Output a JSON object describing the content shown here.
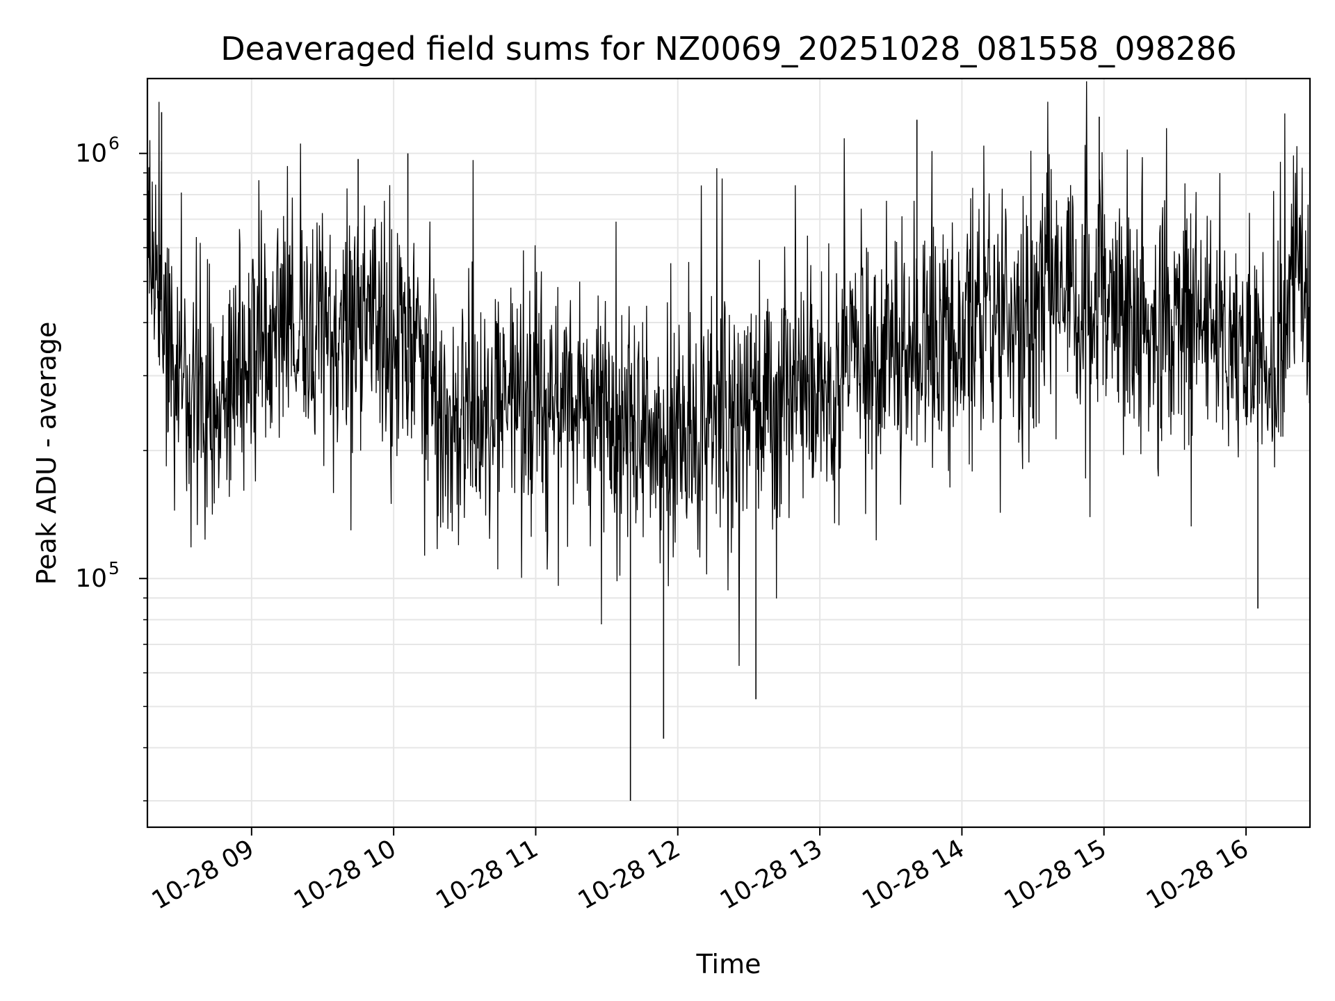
{
  "chart_data": {
    "type": "line",
    "title": "Deaveraged field sums for NZ0069_20251028_081558_098286",
    "xlabel": "Time",
    "ylabel": "Peak ADU - average",
    "yscale": "log",
    "ylim": [
      26000,
      1500000
    ],
    "xlim": [
      "10-28 08:16",
      "10-28 16:27"
    ],
    "grid": true,
    "line_color": "#000000",
    "x_ticks": [
      {
        "label": "10-28 09",
        "time": "10-28 09:00"
      },
      {
        "label": "10-28 10",
        "time": "10-28 10:00"
      },
      {
        "label": "10-28 11",
        "time": "10-28 11:00"
      },
      {
        "label": "10-28 12",
        "time": "10-28 12:00"
      },
      {
        "label": "10-28 13",
        "time": "10-28 13:00"
      },
      {
        "label": "10-28 14",
        "time": "10-28 14:00"
      },
      {
        "label": "10-28 15",
        "time": "10-28 15:00"
      },
      {
        "label": "10-28 16",
        "time": "10-28 16:00"
      }
    ],
    "y_ticks": [
      {
        "base": "10",
        "exp": "6",
        "value": 1000000
      },
      {
        "base": "10",
        "exp": "5",
        "value": 100000
      }
    ],
    "series": [
      {
        "time": [
          "08:16",
          "08:20",
          "08:30",
          "08:40",
          "08:50",
          "09:00",
          "09:15",
          "09:30",
          "09:45",
          "10:00",
          "10:10",
          "10:20",
          "10:30",
          "10:45",
          "11:00",
          "11:15",
          "11:30",
          "11:45",
          "12:00",
          "12:15",
          "12:30",
          "12:45",
          "13:00",
          "13:15",
          "13:30",
          "13:45",
          "14:00",
          "14:15",
          "14:30",
          "14:45",
          "15:00",
          "15:15",
          "15:30",
          "15:45",
          "16:00",
          "16:10",
          "16:20",
          "16:27"
        ],
        "values": [
          620000,
          520000,
          260000,
          240000,
          270000,
          320000,
          380000,
          400000,
          390000,
          380000,
          330000,
          260000,
          240000,
          250000,
          270000,
          280000,
          230000,
          200000,
          230000,
          240000,
          250000,
          260000,
          280000,
          310000,
          340000,
          370000,
          400000,
          420000,
          440000,
          450000,
          460000,
          440000,
          420000,
          400000,
          360000,
          300000,
          520000,
          440000
        ]
      }
    ],
    "notable_points": [
      {
        "time": "08:22",
        "value": 1250000
      },
      {
        "time": "09:45",
        "value": 970000
      },
      {
        "time": "10:06",
        "value": 1000000
      },
      {
        "time": "11:40",
        "value": 30000
      },
      {
        "time": "11:54",
        "value": 42000
      },
      {
        "time": "12:33",
        "value": 52000
      },
      {
        "time": "13:41",
        "value": 1200000
      },
      {
        "time": "14:58",
        "value": 1220000
      },
      {
        "time": "16:05",
        "value": 85000
      }
    ]
  }
}
